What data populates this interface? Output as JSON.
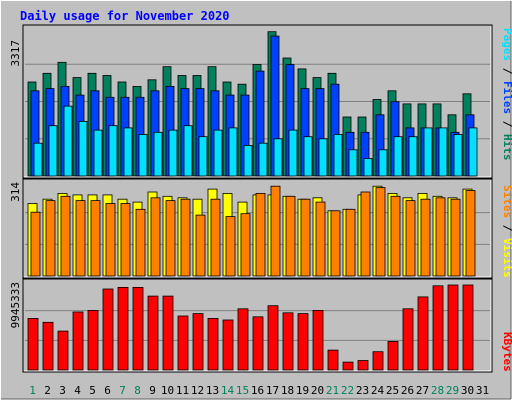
{
  "chart_data": [
    {
      "type": "bar",
      "title": "Daily usage for November 2020",
      "ymax_label": "3317",
      "right_labels": [
        {
          "text": "Pages",
          "color": "#00E0FF"
        },
        {
          "text": "Files",
          "color": "#0040FF"
        },
        {
          "text": "Hits",
          "color": "#00805C"
        }
      ],
      "series": [
        {
          "name": "Hits",
          "color": "#00805C",
          "values": [
            2150,
            2350,
            2600,
            2250,
            2350,
            2300,
            2150,
            2050,
            2200,
            2500,
            2300,
            2300,
            2500,
            2150,
            2100,
            2550,
            3300,
            2700,
            2450,
            2250,
            2350,
            1350,
            1350,
            1750,
            1950,
            1650,
            1650,
            1650,
            1400,
            1880
          ]
        },
        {
          "name": "Files",
          "color": "#0040FF",
          "values": [
            1950,
            2000,
            2050,
            1850,
            1950,
            1800,
            1800,
            1800,
            1950,
            2050,
            2000,
            2000,
            1950,
            1850,
            1850,
            2400,
            3200,
            2550,
            2000,
            2000,
            2100,
            1000,
            1000,
            1400,
            1700,
            1100,
            1100,
            1100,
            1000,
            1400
          ]
        },
        {
          "name": "Pages",
          "color": "#00E0FF",
          "values": [
            750,
            1150,
            1600,
            1250,
            1050,
            1150,
            1100,
            950,
            1000,
            1050,
            1150,
            900,
            1050,
            1100,
            700,
            750,
            850,
            1050,
            900,
            850,
            950,
            600,
            400,
            600,
            900,
            900,
            1100,
            1100,
            950,
            1100
          ]
        }
      ]
    },
    {
      "type": "bar",
      "ymax_label": "314",
      "right_labels": [
        {
          "text": "Sites",
          "color": "#FF8000"
        },
        {
          "text": "Visits",
          "color": "#FFFF00"
        }
      ],
      "series": [
        {
          "name": "Visits",
          "color": "#FFFF00",
          "values": [
            250,
            265,
            285,
            280,
            280,
            280,
            265,
            255,
            290,
            275,
            270,
            265,
            300,
            285,
            255,
            280,
            280,
            275,
            265,
            270,
            225,
            230,
            280,
            310,
            285,
            270,
            285,
            275,
            270,
            300
          ]
        },
        {
          "name": "Sites",
          "color": "#FF8000",
          "values": [
            220,
            260,
            275,
            260,
            260,
            250,
            250,
            230,
            270,
            260,
            265,
            210,
            265,
            205,
            215,
            285,
            310,
            275,
            265,
            255,
            225,
            230,
            290,
            305,
            275,
            260,
            265,
            270,
            265,
            295
          ]
        }
      ]
    },
    {
      "type": "bar",
      "ymax_label": "9945333",
      "right_labels": [
        {
          "text": "KBytes",
          "color": "#FF0000"
        }
      ],
      "series": [
        {
          "name": "KBytes",
          "color": "#FF0000",
          "values": [
            6500,
            6000,
            4900,
            7300,
            7500,
            10200,
            10400,
            10400,
            9300,
            9300,
            6800,
            7100,
            6500,
            6300,
            7700,
            6700,
            8100,
            7200,
            7100,
            7500,
            2500,
            1000,
            1200,
            2300,
            3600,
            7700,
            9200,
            10600,
            10700,
            10700
          ]
        }
      ]
    }
  ],
  "days": [
    "1",
    "2",
    "3",
    "4",
    "5",
    "6",
    "7",
    "8",
    "9",
    "10",
    "11",
    "12",
    "13",
    "14",
    "15",
    "16",
    "17",
    "18",
    "19",
    "20",
    "21",
    "22",
    "23",
    "24",
    "25",
    "26",
    "27",
    "28",
    "29",
    "30",
    "31"
  ],
  "weekend_days": [
    1,
    7,
    8,
    14,
    15,
    21,
    22,
    28,
    29
  ],
  "colors": {
    "background": "#C0C0C0",
    "plot": "#C0C0C0",
    "grid": "#808080",
    "title": "#0000FF",
    "weekday_label": "#000000",
    "weekend_label": "#00805C"
  }
}
